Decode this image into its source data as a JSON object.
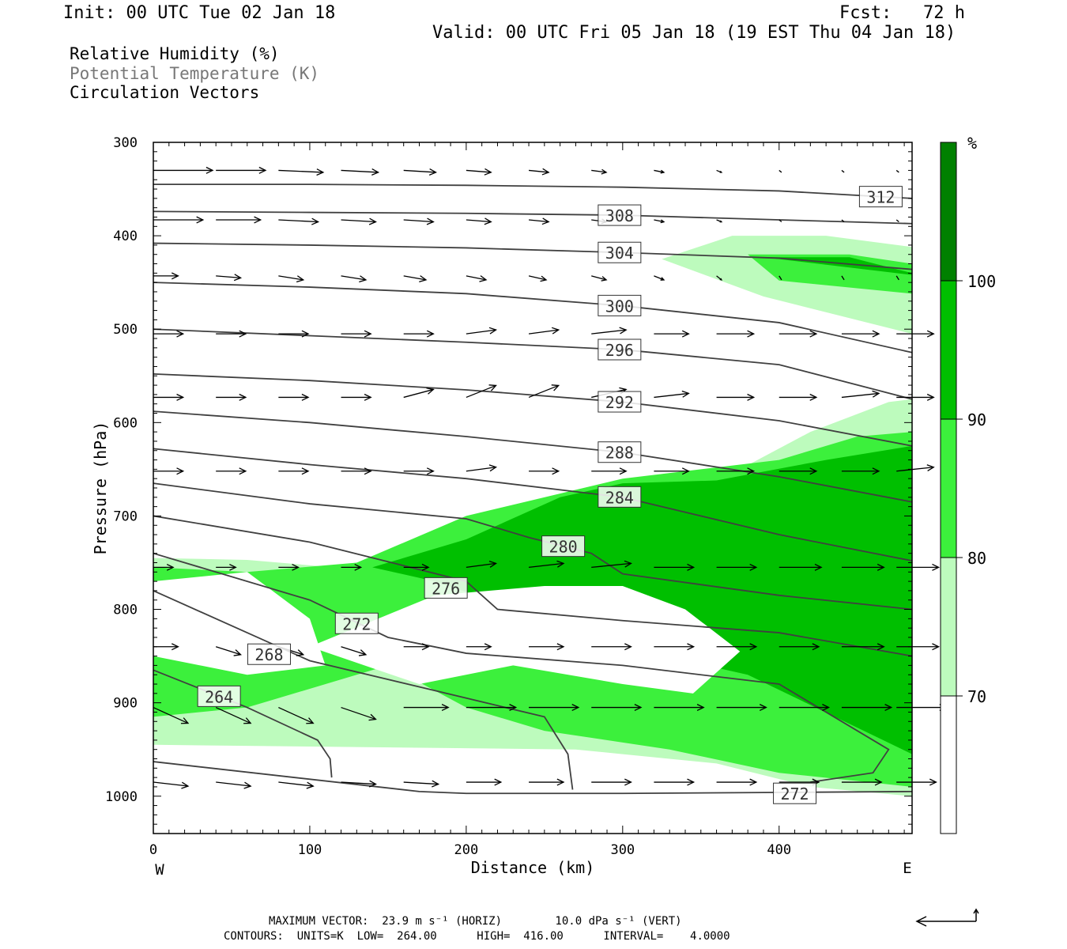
{
  "header": {
    "init": "Init: 00 UTC Tue 02 Jan 18",
    "fcst": "Fcst:   72 h",
    "valid": "Valid: 00 UTC Fri 05 Jan 18 (19 EST Thu 04 Jan 18)"
  },
  "legend_lines": {
    "rh": "Relative Humidity (%)",
    "theta": "Potential Temperature (K)",
    "vectors": "Circulation Vectors"
  },
  "colors": {
    "rh_70_80": "#bdfbbd",
    "rh_80_90": "#3cf03c",
    "rh_90_100": "#00bf00",
    "rh_100": "#008000",
    "contour": "#404040"
  },
  "chart_data": {
    "type": "cross-section",
    "xlabel": "Distance (km)",
    "ylabel": "Pressure (hPa)",
    "xlim": [
      0,
      485
    ],
    "ylim": [
      1040,
      300
    ],
    "x_ticks": [
      "0",
      "100",
      "200",
      "300",
      "400"
    ],
    "x_tick_values": [
      0,
      100,
      200,
      300,
      400
    ],
    "y_ticks": [
      "300",
      "400",
      "500",
      "600",
      "700",
      "800",
      "900",
      "1000"
    ],
    "y_tick_values": [
      300,
      400,
      500,
      600,
      700,
      800,
      900,
      1000
    ],
    "x_end_labels": {
      "left": "W",
      "right": "E"
    },
    "colorbar": {
      "unit": "%",
      "levels": [
        "70",
        "80",
        "90",
        "100"
      ],
      "level_values": [
        70,
        80,
        90,
        100
      ]
    },
    "theta_contours": [
      {
        "label": "312",
        "x": [
          0,
          100,
          200,
          300,
          400,
          485
        ],
        "p": [
          345,
          345,
          346,
          348,
          352,
          360
        ]
      },
      {
        "label": "308",
        "x": [
          0,
          100,
          200,
          300,
          400,
          485
        ],
        "p": [
          374,
          375,
          376,
          378,
          383,
          387
        ]
      },
      {
        "label": "304",
        "x": [
          0,
          100,
          200,
          300,
          400,
          485
        ],
        "p": [
          408,
          410,
          413,
          418,
          424,
          436
        ]
      },
      {
        "label": "300",
        "x": [
          0,
          100,
          200,
          300,
          400,
          485
        ],
        "p": [
          450,
          455,
          462,
          475,
          493,
          525
        ]
      },
      {
        "label": "296",
        "x": [
          0,
          100,
          200,
          300,
          400,
          485
        ],
        "p": [
          500,
          507,
          514,
          522,
          538,
          575
        ]
      },
      {
        "label": "292",
        "x": [
          0,
          100,
          200,
          300,
          400,
          485
        ],
        "p": [
          548,
          555,
          565,
          578,
          598,
          625
        ]
      },
      {
        "label": "288",
        "x": [
          0,
          100,
          200,
          300,
          400,
          485
        ],
        "p": [
          588,
          600,
          615,
          632,
          658,
          685
        ]
      },
      {
        "label": "284",
        "x": [
          0,
          100,
          200,
          300,
          400,
          485
        ],
        "p": [
          628,
          645,
          660,
          680,
          720,
          748
        ]
      },
      {
        "label": "280",
        "x": [
          0,
          100,
          200,
          240,
          280,
          300,
          400,
          485
        ],
        "p": [
          665,
          687,
          703,
          723,
          740,
          762,
          785,
          800
        ]
      },
      {
        "label": "276",
        "x": [
          0,
          100,
          200,
          220,
          300,
          400,
          485
        ],
        "p": [
          700,
          728,
          770,
          800,
          812,
          825,
          850
        ]
      },
      {
        "label": "272",
        "x": [
          0,
          100,
          150,
          200,
          300,
          400,
          470,
          460,
          420
        ],
        "p": [
          740,
          790,
          830,
          847,
          860,
          880,
          950,
          975,
          985
        ]
      },
      {
        "label": "268",
        "x": [
          0,
          100,
          180,
          250,
          265,
          268
        ],
        "p": [
          780,
          855,
          887,
          915,
          955,
          993
        ]
      },
      {
        "label": "264",
        "x": [
          0,
          60,
          105,
          113,
          114
        ],
        "p": [
          865,
          905,
          940,
          960,
          980
        ]
      },
      {
        "label": "272",
        "x": [
          0,
          170,
          200,
          300,
          400,
          485
        ],
        "p": [
          963,
          995,
          997,
          997,
          996,
          995
        ]
      }
    ],
    "rh_regions": [
      {
        "level": "70-80",
        "x": [
          325,
          370,
          430,
          485,
          485,
          390,
          325
        ],
        "p": [
          425,
          400,
          400,
          412,
          505,
          465,
          425
        ]
      },
      {
        "level": "80-90",
        "x": [
          380,
          445,
          485,
          485,
          400,
          380
        ],
        "p": [
          420,
          420,
          430,
          462,
          448,
          420
        ]
      },
      {
        "level": "90-100",
        "x": [
          390,
          445,
          485,
          485,
          390
        ],
        "p": [
          423,
          423,
          440,
          442,
          423
        ]
      },
      {
        "level": "70-80",
        "x": [
          0,
          60,
          150,
          250,
          330,
          420,
          470,
          485,
          485,
          420,
          360,
          300,
          270,
          0
        ],
        "p": [
          745,
          747,
          760,
          750,
          690,
          610,
          578,
          575,
          1000,
          990,
          965,
          955,
          950,
          945
        ]
      },
      {
        "level": "80-90",
        "x": [
          0,
          60,
          130,
          200,
          300,
          400,
          450,
          485,
          485,
          400,
          330,
          250,
          200,
          150,
          60,
          0
        ],
        "p": [
          755,
          760,
          750,
          700,
          660,
          640,
          615,
          610,
          990,
          975,
          950,
          930,
          905,
          860,
          905,
          915
        ]
      },
      {
        "level": "90-100",
        "x": [
          140,
          200,
          260,
          300,
          360,
          430,
          485,
          485,
          380,
          300,
          250,
          180,
          140
        ],
        "p": [
          755,
          725,
          680,
          665,
          662,
          640,
          625,
          955,
          870,
          840,
          810,
          770,
          755
        ]
      }
    ],
    "rh_clear_regions": [
      {
        "x": [
          100,
          180,
          250,
          300,
          340,
          375,
          345,
          300,
          230,
          170,
          100
        ],
        "p": [
          840,
          785,
          775,
          775,
          800,
          845,
          890,
          880,
          860,
          880,
          840
        ]
      },
      {
        "x": [
          0,
          60,
          100,
          110,
          60,
          0
        ],
        "p": [
          770,
          760,
          810,
          860,
          870,
          850
        ]
      }
    ],
    "vector_rows": [
      {
        "p": 330,
        "u": [
          23.9,
          20,
          18,
          15,
          13,
          10,
          8,
          6,
          4,
          2,
          1,
          1,
          1
        ],
        "w": [
          0,
          0,
          0.5,
          0.5,
          0.5,
          0.5,
          0.5,
          0.5,
          0.5,
          0.5,
          0.5,
          0.5,
          0.5
        ]
      },
      {
        "p": 383,
        "u": [
          20,
          18,
          16,
          14,
          12,
          10,
          8,
          6,
          4,
          2,
          1,
          1,
          1
        ],
        "w": [
          0,
          0,
          0.5,
          0.5,
          0.5,
          0.5,
          0.5,
          0.5,
          0.5,
          0.5,
          0.5,
          0.5,
          0.5
        ]
      },
      {
        "p": 443,
        "u": [
          10,
          10,
          10,
          10,
          9,
          8,
          7,
          6,
          4,
          2,
          1,
          1,
          1
        ],
        "w": [
          0,
          0.5,
          1,
          1,
          1,
          1,
          1,
          1,
          1,
          1,
          1,
          1,
          1
        ]
      },
      {
        "p": 505,
        "u": [
          12,
          12,
          12,
          12,
          12,
          12,
          12,
          14,
          14,
          15,
          15,
          15,
          15
        ],
        "w": [
          0,
          0,
          0,
          0,
          0,
          -1,
          -1,
          -1,
          0,
          0,
          0,
          0,
          0
        ]
      },
      {
        "p": 573,
        "u": [
          12,
          12,
          12,
          12,
          12,
          12,
          12,
          14,
          14,
          15,
          15,
          15,
          15
        ],
        "w": [
          0,
          0,
          0,
          0,
          -2,
          -3,
          -3,
          -2,
          -1,
          0,
          0,
          -1,
          0
        ]
      },
      {
        "p": 652,
        "u": [
          12,
          12,
          12,
          12,
          12,
          12,
          12,
          14,
          14,
          15,
          15,
          15,
          15
        ],
        "w": [
          0,
          0,
          0,
          0,
          0,
          -1,
          0,
          0,
          0,
          0,
          0,
          0,
          -1
        ]
      },
      {
        "p": 755,
        "u": [
          8,
          8,
          8,
          8,
          10,
          12,
          14,
          16,
          16,
          16,
          17,
          17,
          17
        ],
        "w": [
          0,
          0,
          0,
          0,
          0,
          -1,
          -1,
          -1,
          0,
          0,
          0,
          0,
          0
        ]
      },
      {
        "p": 840,
        "u": [
          10,
          10,
          10,
          10,
          10,
          10,
          14,
          16,
          16,
          16,
          16,
          17,
          17
        ],
        "w": [
          0,
          2,
          2,
          2,
          0,
          0,
          0,
          0,
          0,
          0,
          0,
          0,
          0
        ]
      },
      {
        "p": 905,
        "u": [
          14,
          14,
          14,
          14,
          18,
          20,
          20,
          20,
          20,
          20,
          20,
          20,
          20
        ],
        "w": [
          4,
          4,
          4,
          3,
          0,
          0,
          0,
          0,
          0,
          0,
          0,
          0,
          0
        ]
      },
      {
        "p": 985,
        "u": [
          14,
          14,
          14,
          14,
          14,
          14,
          14,
          16,
          16,
          16,
          16,
          16,
          16
        ],
        "w": [
          1,
          1,
          1,
          0.5,
          0.5,
          0,
          0,
          0,
          0,
          0,
          0,
          0,
          0
        ]
      }
    ]
  },
  "footer": {
    "line1": "MAXIMUM VECTOR:  23.9 m s⁻¹ (HORIZ)        10.0 dPa s⁻¹ (VERT)",
    "line2": "CONTOURS:  UNITS=K  LOW=  264.00      HIGH=  416.00      INTERVAL=    4.0000"
  }
}
